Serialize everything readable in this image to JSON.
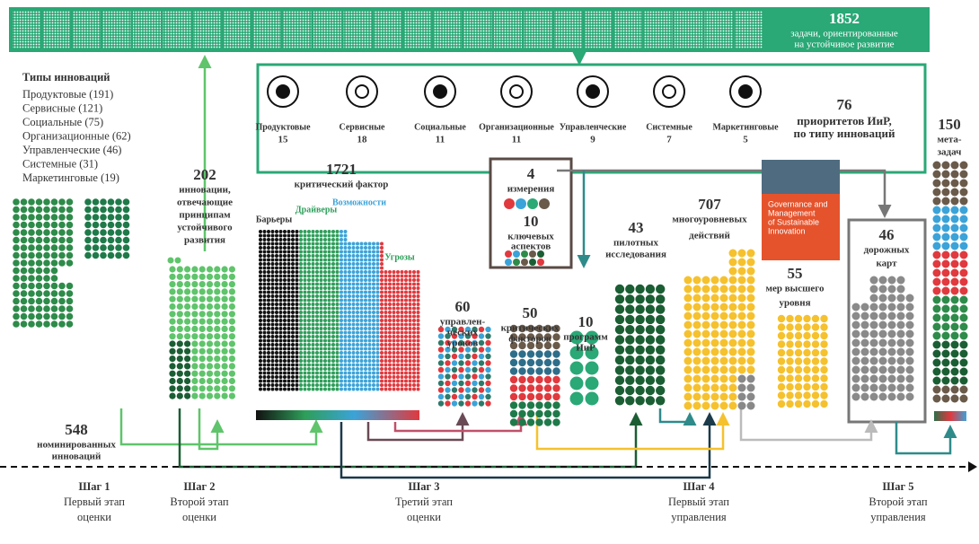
{
  "top": {
    "count": 1852,
    "label": [
      "задачи, ориентированные",
      "на устойчивое развитие"
    ]
  },
  "innovation_types": {
    "title": "Типы инноваций",
    "items": [
      "Продуктовые (191)",
      "Сервисные (121)",
      "Социальные (75)",
      "Организационные (62)",
      "Управленческие (46)",
      "Системные (31)",
      "Маркетинговые (19)"
    ]
  },
  "nominated": {
    "count": 548,
    "label": [
      "номинированных",
      "инноваций"
    ]
  },
  "principles": {
    "count": 202,
    "label": [
      "инновации,",
      "отвечающие",
      "принципам",
      "устойчивого",
      "развития"
    ]
  },
  "factors": {
    "count": 1721,
    "label": [
      "критический фактор"
    ],
    "groups": [
      "Барьеры",
      "Драйверы",
      "Возможности",
      "Угрозы"
    ]
  },
  "priorities": {
    "count": 76,
    "label": [
      "приоритетов ИиР,",
      "по типу инноваций"
    ],
    "types": [
      {
        "name": "Продуктовые",
        "count": 15
      },
      {
        "name": "Сервисные",
        "count": 18
      },
      {
        "name": "Социальные",
        "count": 11
      },
      {
        "name": "Организационные",
        "count": 11
      },
      {
        "name": "Управленческие",
        "count": 9
      },
      {
        "name": "Системные",
        "count": 7
      },
      {
        "name": "Маркетинговые",
        "count": 5
      }
    ]
  },
  "dimensions": {
    "count": 4,
    "label": [
      "измерения"
    ]
  },
  "aspects": {
    "count": 10,
    "label": [
      "ключевых",
      "аспектов"
    ]
  },
  "lessons": {
    "count": 60,
    "label": [
      "управлен-",
      "ческих",
      "уроков"
    ]
  },
  "critical": {
    "count": 50,
    "label": [
      "критических",
      "факторов"
    ]
  },
  "programs": {
    "count": 10,
    "label": [
      "программ",
      "ИиР"
    ]
  },
  "pilots": {
    "count": 43,
    "label": [
      "пилотных",
      "исследования"
    ]
  },
  "actions": {
    "count": 707,
    "label": [
      "многоуровневых",
      "действий"
    ]
  },
  "book": {
    "title": [
      "Governance and",
      "Management",
      "of Sustainable",
      "Innovation"
    ]
  },
  "measures": {
    "count": 55,
    "label": [
      "мер высшего",
      "уровня"
    ]
  },
  "roadmaps": {
    "count": 46,
    "label": [
      "дорожных",
      "карт"
    ]
  },
  "meta": {
    "count": 150,
    "label": [
      "мета-",
      "задач"
    ]
  },
  "steps": [
    {
      "name": "Шаг 1",
      "label": [
        "Первый этап",
        "оценки"
      ]
    },
    {
      "name": "Шаг 2",
      "label": [
        "Второй этап",
        "оценки"
      ]
    },
    {
      "name": "Шаг 3",
      "label": [
        "Третий этап",
        "оценки"
      ]
    },
    {
      "name": "Шаг 4",
      "label": [
        "Первый этап",
        "управления"
      ]
    },
    {
      "name": "Шаг 5",
      "label": [
        "Второй этап",
        "управления"
      ]
    }
  ]
}
